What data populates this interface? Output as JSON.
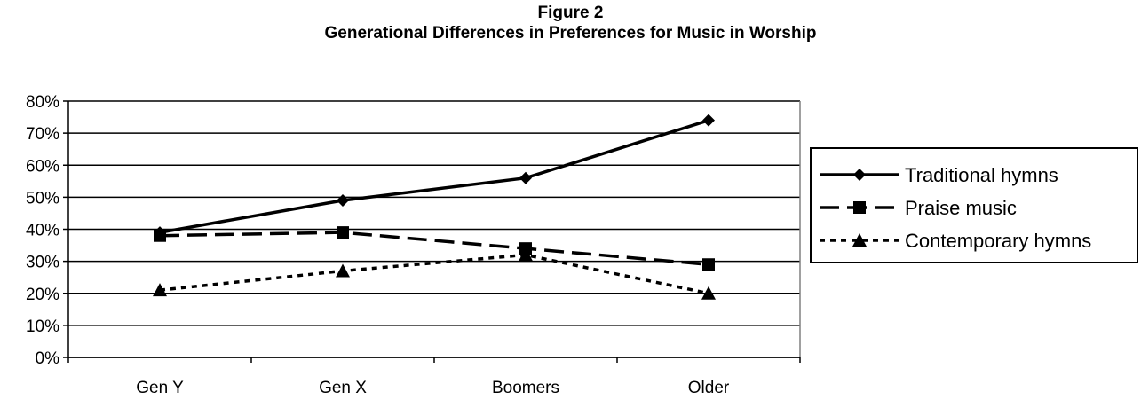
{
  "chart_data": {
    "type": "line",
    "title": "Figure 2",
    "subtitle": "Generational Differences in Preferences for Music in Worship",
    "categories": [
      "Gen Y",
      "Gen X",
      "Boomers",
      "Older"
    ],
    "yticks": [
      "0%",
      "10%",
      "20%",
      "30%",
      "40%",
      "50%",
      "60%",
      "70%",
      "80%"
    ],
    "ylim": [
      0,
      80
    ],
    "grid": true,
    "legend_position": "right",
    "series": [
      {
        "name": "Traditional hymns",
        "values": [
          39,
          49,
          56,
          74
        ],
        "marker": "diamond",
        "dash": "solid"
      },
      {
        "name": "Praise music",
        "values": [
          38,
          39,
          34,
          29
        ],
        "marker": "square",
        "dash": "long-dash"
      },
      {
        "name": "Contemporary hymns",
        "values": [
          21,
          27,
          32,
          20
        ],
        "marker": "triangle",
        "dash": "dotted"
      }
    ],
    "line_color": "#000000"
  }
}
